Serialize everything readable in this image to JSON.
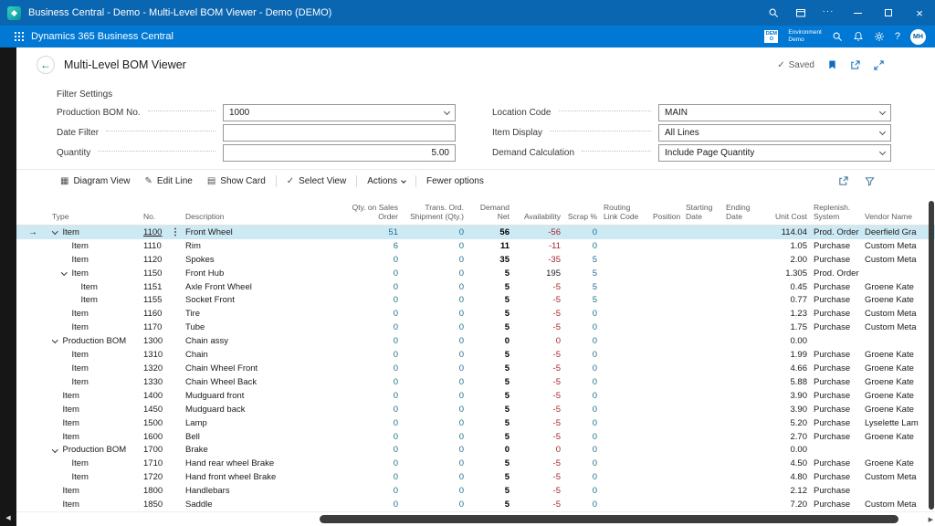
{
  "window": {
    "title": "Business Central - Demo - Multi-Level BOM Viewer - Demo (DEMO)"
  },
  "app_header": {
    "product_name": "Dynamics 365 Business Central",
    "environment_badge": "DEMO",
    "environment_title": "Environment",
    "environment_name": "Demo",
    "user_initials": "MH"
  },
  "page": {
    "title": "Multi-Level BOM Viewer",
    "save_status": "Saved"
  },
  "filters": {
    "section_title": "Filter Settings",
    "columns": [
      {
        "fields": [
          {
            "label": "Production BOM No.",
            "value": "1000",
            "control": "combo"
          },
          {
            "label": "Date Filter",
            "value": "",
            "control": "input"
          },
          {
            "label": "Quantity",
            "value": "5.00",
            "control": "input",
            "align": "right"
          }
        ]
      },
      {
        "fields": [
          {
            "label": "Location Code",
            "value": "MAIN",
            "control": "combo"
          },
          {
            "label": "Item Display",
            "value": "All Lines",
            "control": "combo"
          },
          {
            "label": "Demand Calculation",
            "value": "Include Page Quantity",
            "control": "combo"
          }
        ]
      }
    ]
  },
  "toolbar": {
    "actions": [
      {
        "label": "Diagram View",
        "icon": "diagram-view-icon",
        "glyph": "▦"
      },
      {
        "label": "Edit Line",
        "icon": "edit-pencil-icon",
        "glyph": "✎"
      },
      {
        "label": "Show Card",
        "icon": "card-icon",
        "glyph": "▤"
      },
      {
        "label": "Select View",
        "icon": "check-icon",
        "glyph": "✓",
        "divider_before": true
      },
      {
        "label": "Actions",
        "caret": true,
        "divider_before": true
      },
      {
        "label": "Fewer options",
        "divider_before": true
      }
    ],
    "right_icons": [
      "share-icon",
      "filter-icon"
    ]
  },
  "table": {
    "columns": [
      {
        "key": "type",
        "label": "Type",
        "align": "left"
      },
      {
        "key": "no",
        "label": "No.",
        "align": "left"
      },
      {
        "key": "description",
        "label": "Description",
        "align": "left"
      },
      {
        "key": "qty_sales",
        "label": "Qty. on Sales Order",
        "align": "right"
      },
      {
        "key": "trans_ord",
        "label": "Trans. Ord. Shipment (Qty.)",
        "align": "right"
      },
      {
        "key": "demand_net",
        "label": "Demand Net",
        "align": "right"
      },
      {
        "key": "availability",
        "label": "Availability",
        "align": "right"
      },
      {
        "key": "scrap",
        "label": "Scrap %",
        "align": "right"
      },
      {
        "key": "routing",
        "label": "Routing Link Code",
        "align": "left"
      },
      {
        "key": "position",
        "label": "Position",
        "align": "left"
      },
      {
        "key": "starting_date",
        "label": "Starting Date",
        "align": "left"
      },
      {
        "key": "ending_date",
        "label": "Ending Date",
        "align": "left"
      },
      {
        "key": "unit_cost",
        "label": "Unit Cost",
        "align": "right"
      },
      {
        "key": "replenish",
        "label": "Replenish. System",
        "align": "left"
      },
      {
        "key": "vendor",
        "label": "Vendor Name",
        "align": "left"
      }
    ],
    "rows": [
      {
        "level": 0,
        "expandable": true,
        "selected": true,
        "type": "Item",
        "no": "1100",
        "description": "Front Wheel",
        "qty_sales": "51",
        "trans_ord": "0",
        "demand_net": "56",
        "availability": "-56",
        "avail_neg": true,
        "scrap": "0",
        "unit_cost": "114.04",
        "replenish": "Prod. Order",
        "vendor": "Deerfield Gra"
      },
      {
        "level": 1,
        "type": "Item",
        "no": "1110",
        "description": "Rim",
        "qty_sales": "6",
        "trans_ord": "0",
        "demand_net": "11",
        "availability": "-11",
        "avail_neg": true,
        "scrap": "0",
        "unit_cost": "1.05",
        "replenish": "Purchase",
        "vendor": "Custom Meta"
      },
      {
        "level": 1,
        "type": "Item",
        "no": "1120",
        "description": "Spokes",
        "qty_sales": "0",
        "trans_ord": "0",
        "demand_net": "35",
        "availability": "-35",
        "avail_neg": true,
        "scrap": "5",
        "unit_cost": "2.00",
        "replenish": "Purchase",
        "vendor": "Custom Meta"
      },
      {
        "level": 1,
        "expandable": true,
        "type": "Item",
        "no": "1150",
        "description": "Front Hub",
        "qty_sales": "0",
        "trans_ord": "0",
        "demand_net": "5",
        "availability": "195",
        "scrap": "5",
        "unit_cost": "1.305",
        "replenish": "Prod. Order",
        "vendor": ""
      },
      {
        "level": 2,
        "type": "Item",
        "no": "1151",
        "description": "Axle Front Wheel",
        "qty_sales": "0",
        "trans_ord": "0",
        "demand_net": "5",
        "availability": "-5",
        "avail_neg": true,
        "scrap": "5",
        "unit_cost": "0.45",
        "replenish": "Purchase",
        "vendor": "Groene Kate"
      },
      {
        "level": 2,
        "type": "Item",
        "no": "1155",
        "description": "Socket Front",
        "qty_sales": "0",
        "trans_ord": "0",
        "demand_net": "5",
        "availability": "-5",
        "avail_neg": true,
        "scrap": "5",
        "unit_cost": "0.77",
        "replenish": "Purchase",
        "vendor": "Groene Kate"
      },
      {
        "level": 1,
        "type": "Item",
        "no": "1160",
        "description": "Tire",
        "qty_sales": "0",
        "trans_ord": "0",
        "demand_net": "5",
        "availability": "-5",
        "avail_neg": true,
        "scrap": "0",
        "unit_cost": "1.23",
        "replenish": "Purchase",
        "vendor": "Custom Meta"
      },
      {
        "level": 1,
        "type": "Item",
        "no": "1170",
        "description": "Tube",
        "qty_sales": "0",
        "trans_ord": "0",
        "demand_net": "5",
        "availability": "-5",
        "avail_neg": true,
        "scrap": "0",
        "unit_cost": "1.75",
        "replenish": "Purchase",
        "vendor": "Custom Meta"
      },
      {
        "level": 0,
        "expandable": true,
        "type": "Production BOM",
        "no": "1300",
        "description": "Chain assy",
        "qty_sales": "0",
        "trans_ord": "0",
        "demand_net": "0",
        "availability": "0",
        "avail_neg": true,
        "scrap": "0",
        "unit_cost": "0.00",
        "replenish": "",
        "vendor": ""
      },
      {
        "level": 1,
        "type": "Item",
        "no": "1310",
        "description": "Chain",
        "qty_sales": "0",
        "trans_ord": "0",
        "demand_net": "5",
        "availability": "-5",
        "avail_neg": true,
        "scrap": "0",
        "unit_cost": "1.99",
        "replenish": "Purchase",
        "vendor": "Groene Kate"
      },
      {
        "level": 1,
        "type": "Item",
        "no": "1320",
        "description": "Chain Wheel Front",
        "qty_sales": "0",
        "trans_ord": "0",
        "demand_net": "5",
        "availability": "-5",
        "avail_neg": true,
        "scrap": "0",
        "unit_cost": "4.66",
        "replenish": "Purchase",
        "vendor": "Groene Kate"
      },
      {
        "level": 1,
        "type": "Item",
        "no": "1330",
        "description": "Chain Wheel Back",
        "qty_sales": "0",
        "trans_ord": "0",
        "demand_net": "5",
        "availability": "-5",
        "avail_neg": true,
        "scrap": "0",
        "unit_cost": "5.88",
        "replenish": "Purchase",
        "vendor": "Groene Kate"
      },
      {
        "level": 0,
        "type": "Item",
        "no": "1400",
        "description": "Mudguard front",
        "qty_sales": "0",
        "trans_ord": "0",
        "demand_net": "5",
        "availability": "-5",
        "avail_neg": true,
        "scrap": "0",
        "unit_cost": "3.90",
        "replenish": "Purchase",
        "vendor": "Groene Kate"
      },
      {
        "level": 0,
        "type": "Item",
        "no": "1450",
        "description": "Mudguard back",
        "qty_sales": "0",
        "trans_ord": "0",
        "demand_net": "5",
        "availability": "-5",
        "avail_neg": true,
        "scrap": "0",
        "unit_cost": "3.90",
        "replenish": "Purchase",
        "vendor": "Groene Kate"
      },
      {
        "level": 0,
        "type": "Item",
        "no": "1500",
        "description": "Lamp",
        "qty_sales": "0",
        "trans_ord": "0",
        "demand_net": "5",
        "availability": "-5",
        "avail_neg": true,
        "scrap": "0",
        "unit_cost": "5.20",
        "replenish": "Purchase",
        "vendor": "Lyselette Lam"
      },
      {
        "level": 0,
        "type": "Item",
        "no": "1600",
        "description": "Bell",
        "qty_sales": "0",
        "trans_ord": "0",
        "demand_net": "5",
        "availability": "-5",
        "avail_neg": true,
        "scrap": "0",
        "unit_cost": "2.70",
        "replenish": "Purchase",
        "vendor": "Groene Kate"
      },
      {
        "level": 0,
        "expandable": true,
        "type": "Production BOM",
        "no": "1700",
        "description": "Brake",
        "qty_sales": "0",
        "trans_ord": "0",
        "demand_net": "0",
        "availability": "0",
        "avail_neg": true,
        "scrap": "0",
        "unit_cost": "0.00",
        "replenish": "",
        "vendor": ""
      },
      {
        "level": 1,
        "type": "Item",
        "no": "1710",
        "description": "Hand rear wheel Brake",
        "qty_sales": "0",
        "trans_ord": "0",
        "demand_net": "5",
        "availability": "-5",
        "avail_neg": true,
        "scrap": "0",
        "unit_cost": "4.50",
        "replenish": "Purchase",
        "vendor": "Groene Kate"
      },
      {
        "level": 1,
        "type": "Item",
        "no": "1720",
        "description": "Hand front wheel Brake",
        "qty_sales": "0",
        "trans_ord": "0",
        "demand_net": "5",
        "availability": "-5",
        "avail_neg": true,
        "scrap": "0",
        "unit_cost": "4.80",
        "replenish": "Purchase",
        "vendor": "Custom Meta"
      },
      {
        "level": 0,
        "type": "Item",
        "no": "1800",
        "description": "Handlebars",
        "qty_sales": "0",
        "trans_ord": "0",
        "demand_net": "5",
        "availability": "-5",
        "avail_neg": true,
        "scrap": "0",
        "unit_cost": "2.12",
        "replenish": "Purchase",
        "vendor": ""
      },
      {
        "level": 0,
        "type": "Item",
        "no": "1850",
        "description": "Saddle",
        "qty_sales": "0",
        "trans_ord": "0",
        "demand_net": "5",
        "availability": "-5",
        "avail_neg": true,
        "scrap": "0",
        "unit_cost": "7.20",
        "replenish": "Purchase",
        "vendor": "Custom Meta"
      }
    ]
  },
  "icons": {
    "more": "···",
    "close": "×",
    "help": "?",
    "saved_check": "✓",
    "selected_row_arrow": "→",
    "back_arrow": "←",
    "scroll_left": "◀",
    "scroll_right": "▶"
  }
}
